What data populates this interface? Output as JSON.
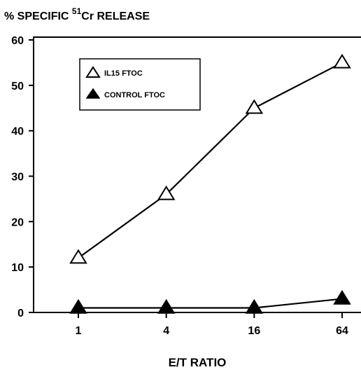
{
  "chart_data": {
    "type": "line",
    "ylabel_prefix": "% SPECIFIC ",
    "ylabel_superscript": "51",
    "ylabel_suffix": "Cr RELEASE",
    "xlabel": "E/T RATIO",
    "x": [
      1,
      4,
      16,
      64
    ],
    "x_tick_labels": [
      "1",
      "4",
      "16",
      "64"
    ],
    "x_scale": "log",
    "y_ticks": [
      0,
      10,
      20,
      30,
      40,
      50,
      60
    ],
    "ylim": [
      0,
      60
    ],
    "grid": false,
    "legend_position": "top-left",
    "series": [
      {
        "name": "IL15 FTOC",
        "marker": "open-triangle",
        "values": [
          12,
          26,
          45,
          55
        ]
      },
      {
        "name": "CONTROL FTOC",
        "marker": "filled-triangle",
        "values": [
          1,
          1,
          1,
          3
        ]
      }
    ]
  }
}
